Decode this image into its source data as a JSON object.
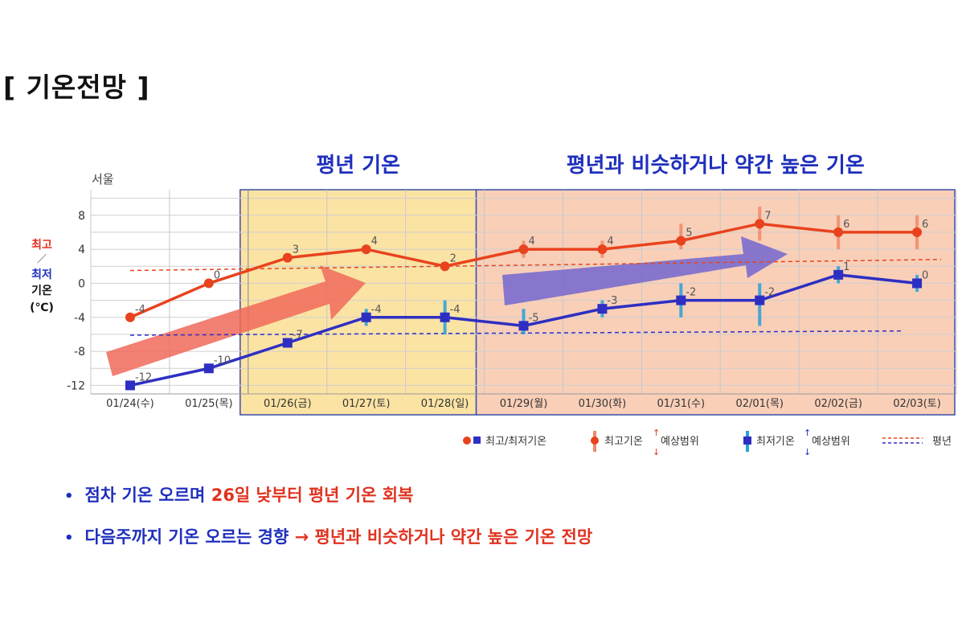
{
  "page": {
    "title": "[ 기온전망 ]"
  },
  "chart_data": {
    "type": "line",
    "location": "서울",
    "ylabel": {
      "max": "최고",
      "sep": "／",
      "min": "최저",
      "word": "기온",
      "unit": "(℃)"
    },
    "yticks": [
      8,
      4,
      0,
      -4,
      -8,
      -12
    ],
    "ylim": [
      -13,
      11
    ],
    "categories": [
      "01/24(수)",
      "01/25(목)",
      "01/26(금)",
      "01/27(토)",
      "01/28(일)",
      "01/29(월)",
      "01/30(화)",
      "01/31(수)",
      "02/01(목)",
      "02/02(금)",
      "02/03(토)"
    ],
    "series": [
      {
        "key": "max",
        "color": "#e8431e",
        "values": [
          -4,
          0,
          3,
          4,
          2,
          4,
          4,
          5,
          7,
          6,
          6
        ],
        "range_low": [
          null,
          null,
          null,
          null,
          null,
          3,
          3,
          4,
          5,
          4,
          4
        ],
        "range_high": [
          null,
          null,
          null,
          null,
          null,
          5,
          5,
          7,
          9,
          8,
          8
        ]
      },
      {
        "key": "min",
        "color": "#2e2fc2",
        "values": [
          -12,
          -10,
          -7,
          -4,
          -4,
          -5,
          -3,
          -2,
          -2,
          1,
          0
        ],
        "range_low": [
          null,
          null,
          null,
          -5,
          -6,
          -6,
          -4,
          -4,
          -5,
          0,
          -1
        ],
        "range_high": [
          null,
          null,
          null,
          -3,
          -2,
          -3,
          -2,
          0,
          0,
          2,
          1
        ]
      }
    ],
    "max_labels": [
      "-4",
      "0",
      "3",
      "4",
      "2",
      "4",
      "4",
      "5",
      "7",
      "6",
      "6"
    ],
    "min_labels": [
      "-12",
      "-10",
      "-7",
      "-4",
      "-4",
      "-5",
      "-3",
      "-2",
      "-2",
      "1",
      "0"
    ],
    "normal_max": [
      1.5,
      2.8
    ],
    "normal_min": [
      -6.1,
      -5.6
    ],
    "periods": [
      {
        "label": "평년 기온",
        "from": 2,
        "to": 4,
        "fill": "#fbe3a4",
        "color": "#1f2fbd"
      },
      {
        "label": "평년과 비슷하거나 약간 높은 기온",
        "from": 5,
        "to": 10,
        "fill": "#f9cfb8",
        "color": "#1f2fbd"
      }
    ],
    "legend": {
      "item1": "최고/최저기온",
      "item2": "최고기온",
      "item2b": "예상범위",
      "item3": "최저기온",
      "item3b": "예상범위",
      "item4": "평년"
    },
    "colors": {
      "max_line": "#e8431e",
      "min_line": "#2e2fc2",
      "max_arrow": "#f06a5a",
      "min_arrow": "#6a5fcf",
      "period_border": "#3a4fa8"
    }
  },
  "bullets": [
    {
      "blue": "점차 기온 오르며 ",
      "red": "26일 낮부터 평년 기온 회복"
    },
    {
      "blue": "다음주까지 기온 오르는 경향 ",
      "red": "→ 평년과 비슷하거나 약간 높은 기온 전망"
    }
  ]
}
